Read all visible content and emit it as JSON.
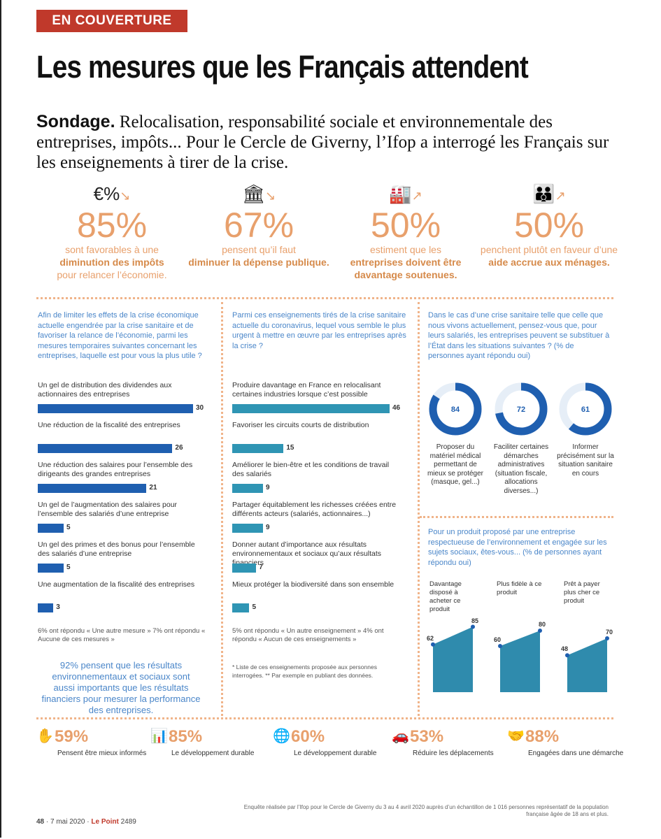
{
  "header": {
    "badge": "EN COUVERTURE",
    "title": "Les mesures que les Français attendent",
    "lead_strong": "Sondage.",
    "lead": " Relocalisation, responsabilité sociale et environnementale des entreprises, impôts... Pour le Cercle de Giverny, l’Ifop a interrogé les Français sur les enseignements à tirer de la crise."
  },
  "stats": [
    {
      "icon": "money-icon",
      "glyph": "€%",
      "pct": "85%",
      "pre": "sont favorables à une",
      "bold": "diminution des impôts",
      "post": "pour relancer l’économie."
    },
    {
      "icon": "bank-icon",
      "glyph": "🏛",
      "pct": "67%",
      "pre": "pensent qu’il faut",
      "bold": "diminuer la dépense publique.",
      "post": ""
    },
    {
      "icon": "factory-icon",
      "glyph": "🏭",
      "pct": "50%",
      "pre": "estiment que les",
      "bold": "entreprises doivent être davantage soutenues.",
      "post": ""
    },
    {
      "icon": "family-icon",
      "glyph": "👪",
      "pct": "50%",
      "pre": "penchent plutôt en faveur d’une",
      "bold": "aide accrue aux ménages.",
      "post": ""
    }
  ],
  "col1": {
    "question": "Afin de limiter les effets de la crise économique actuelle engendrée par la crise sanitaire et de favoriser la relance de l’économie, parmi les mesures temporaires suivantes concernant les entreprises, laquelle est pour vous la plus utile ?",
    "items": [
      {
        "label": "Un gel de distribution des dividendes aux actionnaires des entreprises",
        "value": 30
      },
      {
        "label": "Une réduction de la fiscalité des entreprises",
        "value": 26
      },
      {
        "label": "Une réduction des salaires pour l’ensemble des dirigeants des grandes entreprises",
        "value": 21
      },
      {
        "label": "Un gel de l’augmentation des salaires pour l’ensemble des salariés d’une entreprise",
        "value": 5
      },
      {
        "label": "Un gel des primes et des bonus pour l’ensemble des salariés d’une entreprise",
        "value": 5
      },
      {
        "label": "Une augmentation de la fiscalité des entreprises",
        "value": 3
      }
    ],
    "note": "6% ont répondu « Une autre mesure » 7% ont répondu « Aucune de ces mesures »",
    "callout": "92% pensent que les résultats environnementaux et sociaux sont aussi importants que les résultats financiers pour mesurer la performance des entreprises."
  },
  "col2": {
    "question": "Parmi ces enseignements tirés de la crise sanitaire actuelle du coronavirus, lequel vous semble le plus urgent à mettre en œuvre par les entreprises après la crise ?",
    "items": [
      {
        "label": "Produire davantage en France en relocalisant certaines industries lorsque c’est possible",
        "value": 46
      },
      {
        "label": "Favoriser les circuits courts de distribution",
        "value": 15
      },
      {
        "label": "Améliorer le bien-être et les conditions de travail des salariés",
        "value": 9
      },
      {
        "label": "Partager équitablement les richesses créées entre différents acteurs (salariés, actionnaires...)",
        "value": 9
      },
      {
        "label": "Donner autant d’importance aux résultats environnementaux et sociaux qu’aux résultats financiers",
        "value": 7
      },
      {
        "label": "Mieux protéger la biodiversité dans son ensemble",
        "value": 5
      }
    ],
    "note": "5% ont répondu « Un autre enseignement » 4% ont répondu « Aucun de ces enseignements »",
    "footnote": "* Liste de ces enseignements proposée aux personnes interrogées. ** Par exemple en publiant des données."
  },
  "col3": {
    "question": "Dans le cas d’une crise sanitaire telle que celle que nous vivons actuellement, pensez-vous que, pour leurs salariés, les entreprises peuvent se substituer à l’État dans les situations suivantes ? (% de personnes ayant répondu oui)",
    "donuts": [
      {
        "value": 84,
        "label": "Proposer du matériel médical permettant de mieux se protéger (masque, gel...)"
      },
      {
        "value": 72,
        "label": "Faciliter certaines démarches administratives (situation fiscale, allocations diverses...)"
      },
      {
        "value": 61,
        "label": "Informer précisément sur la situation sanitaire en cours"
      }
    ],
    "question2": "Pour un produit proposé par une entreprise respectueuse de l’environnement et engagée sur les sujets sociaux, êtes-vous... (% de personnes ayant répondu oui)",
    "areas": [
      {
        "label": "Davantage disposé à acheter ce produit",
        "values": [
          62,
          85
        ]
      },
      {
        "label": "Plus fidèle à ce produit",
        "values": [
          60,
          80
        ]
      },
      {
        "label": "Prêt à payer plus cher ce produit",
        "values": [
          48,
          70
        ]
      }
    ]
  },
  "bottom": [
    {
      "icon": "hand-icon",
      "pct": "59%",
      "text": "Pensent être mieux informés"
    },
    {
      "icon": "chart-icon",
      "pct": "85%",
      "text": "Le développement durable"
    },
    {
      "icon": "globe-icon",
      "pct": "60%",
      "text": "Le développement durable"
    },
    {
      "icon": "car-icon",
      "pct": "53%",
      "text": "Réduire les déplacements"
    },
    {
      "icon": "handshake-icon",
      "pct": "88%",
      "text": "Engagées dans une démarche"
    }
  ],
  "footer": {
    "page": "48",
    "date": "7 mai 2020",
    "pub": "Le Point",
    "issue": "2489",
    "source": "Enquête réalisée par l’Ifop pour le Cercle de Giverny du 3 au 4 avril 2020 auprès d’un échantillon de 1 016 personnes représentatif de la population française âgée de 18 ans et plus."
  },
  "colors": {
    "dark_bar": "#1f5fb0",
    "teal_bar": "#2f95b4",
    "accent": "#e8a06c",
    "badge": "#c0392b"
  }
}
